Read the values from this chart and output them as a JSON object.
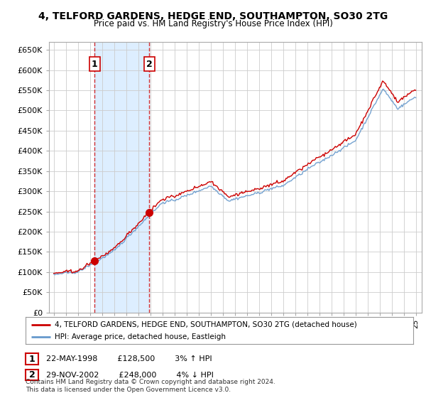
{
  "title_line1": "4, TELFORD GARDENS, HEDGE END, SOUTHAMPTON, SO30 2TG",
  "title_line2": "Price paid vs. HM Land Registry's House Price Index (HPI)",
  "ylabel_ticks": [
    "£0",
    "£50K",
    "£100K",
    "£150K",
    "£200K",
    "£250K",
    "£300K",
    "£350K",
    "£400K",
    "£450K",
    "£500K",
    "£550K",
    "£600K",
    "£650K"
  ],
  "ytick_values": [
    0,
    50000,
    100000,
    150000,
    200000,
    250000,
    300000,
    350000,
    400000,
    450000,
    500000,
    550000,
    600000,
    650000
  ],
  "purchases": [
    {
      "date_num": 1998.38,
      "price": 128500,
      "label": "1",
      "date_str": "22-MAY-1998",
      "pct": "3%",
      "dir": "↑"
    },
    {
      "date_num": 2002.91,
      "price": 248000,
      "label": "2",
      "date_str": "29-NOV-2002",
      "pct": "4%",
      "dir": "↓"
    }
  ],
  "legend_line1": "4, TELFORD GARDENS, HEDGE END, SOUTHAMPTON, SO30 2TG (detached house)",
  "legend_line2": "HPI: Average price, detached house, Eastleigh",
  "footnote": "Contains HM Land Registry data © Crown copyright and database right 2024.\nThis data is licensed under the Open Government Licence v3.0.",
  "price_color": "#cc0000",
  "hpi_color": "#6699cc",
  "hpi_fill_color": "#ddeeff",
  "vline_color": "#cc0000",
  "bg_color": "#ffffff",
  "plot_bg_color": "#ffffff",
  "grid_color": "#cccccc",
  "annotation_box_color": "#cc0000",
  "shade_color": "#ddeeff",
  "hatch_color": "#cccccc"
}
